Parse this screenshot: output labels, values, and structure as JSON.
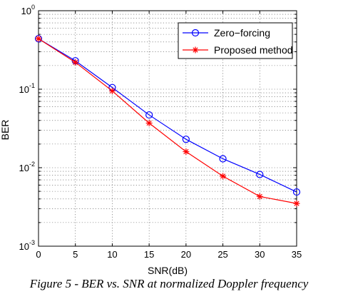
{
  "chart_data": {
    "type": "line",
    "xlabel": "SNR(dB)",
    "ylabel": "BER",
    "x_ticks": [
      0,
      5,
      10,
      15,
      20,
      25,
      30,
      35
    ],
    "xlim": [
      0,
      35
    ],
    "ylim": [
      0.001,
      1
    ],
    "y_scale": "log",
    "y_tick_labels": [
      {
        "value": 1,
        "base": "10",
        "exp": "0"
      },
      {
        "value": 0.1,
        "base": "10",
        "exp": "-1"
      },
      {
        "value": 0.01,
        "base": "10",
        "exp": "-2"
      },
      {
        "value": 0.001,
        "base": "10",
        "exp": "-3"
      }
    ],
    "grid": true,
    "legend_position": "top-right",
    "series": [
      {
        "name": "Zero−forcing",
        "color": "#0000ff",
        "marker": "circle",
        "x": [
          0,
          5,
          10,
          15,
          20,
          25,
          30,
          35
        ],
        "y": [
          0.44,
          0.23,
          0.105,
          0.047,
          0.023,
          0.013,
          0.0082,
          0.0049
        ]
      },
      {
        "name": "Proposed method",
        "color": "#ff0000",
        "marker": "asterisk",
        "x": [
          0,
          5,
          10,
          15,
          20,
          25,
          30,
          35
        ],
        "y": [
          0.44,
          0.22,
          0.095,
          0.037,
          0.016,
          0.0078,
          0.0043,
          0.0035
        ]
      }
    ]
  },
  "caption": "Figure 5 - BER vs. SNR at normalized Doppler frequency"
}
